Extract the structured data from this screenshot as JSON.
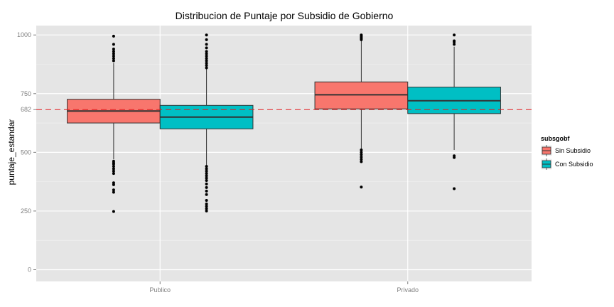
{
  "chart_data": {
    "type": "boxplot",
    "title": "Distribucion de Puntaje por Subsidio de Gobierno",
    "xlabel": "",
    "ylabel": "puntaje_estandar",
    "ylim": [
      -50,
      1040
    ],
    "y_ticks": [
      0,
      250,
      500,
      682,
      750,
      1000
    ],
    "y_tick_labels": [
      "0",
      "250",
      "500",
      "682",
      "750",
      "1000"
    ],
    "grid": true,
    "categories": [
      "Publico",
      "Privado"
    ],
    "legend": {
      "title": "subsgobf",
      "position": "right"
    },
    "reference_line": {
      "y": 682,
      "color": "#e31a1c",
      "style": "dashed"
    },
    "series": [
      {
        "name": "Sin Subsidio",
        "color": "#f8766d",
        "boxes": [
          {
            "category": "Publico",
            "q1": 625,
            "median": 676,
            "q3": 726,
            "whisker_low": 470,
            "whisker_high": 880,
            "outliers": [
              248,
              330,
              340,
              362,
              370,
              410,
              420,
              430,
              440,
              450,
              455,
              462,
              890,
              900,
              910,
              920,
              930,
              940,
              960,
              995
            ]
          },
          {
            "category": "Privado",
            "q1": 685,
            "median": 745,
            "q3": 800,
            "whisker_low": 515,
            "whisker_high": 975,
            "outliers": [
              352,
              460,
              470,
              480,
              490,
              500,
              510,
              980,
              985,
              990,
              995,
              1000
            ]
          }
        ]
      },
      {
        "name": "Con Subsidio",
        "color": "#00bfc4",
        "boxes": [
          {
            "category": "Publico",
            "q1": 600,
            "median": 650,
            "q3": 700,
            "whisker_low": 445,
            "whisker_high": 855,
            "outliers": [
              250,
              260,
              270,
              280,
              295,
              320,
              335,
              350,
              365,
              380,
              390,
              400,
              410,
              420,
              430,
              440,
              860,
              870,
              880,
              890,
              900,
              910,
              920,
              930,
              945,
              960,
              980,
              1000
            ]
          },
          {
            "category": "Privado",
            "q1": 665,
            "median": 720,
            "q3": 778,
            "whisker_low": 510,
            "whisker_high": 950,
            "outliers": [
              345,
              478,
              485,
              960,
              970,
              975,
              1000
            ]
          }
        ]
      }
    ]
  }
}
